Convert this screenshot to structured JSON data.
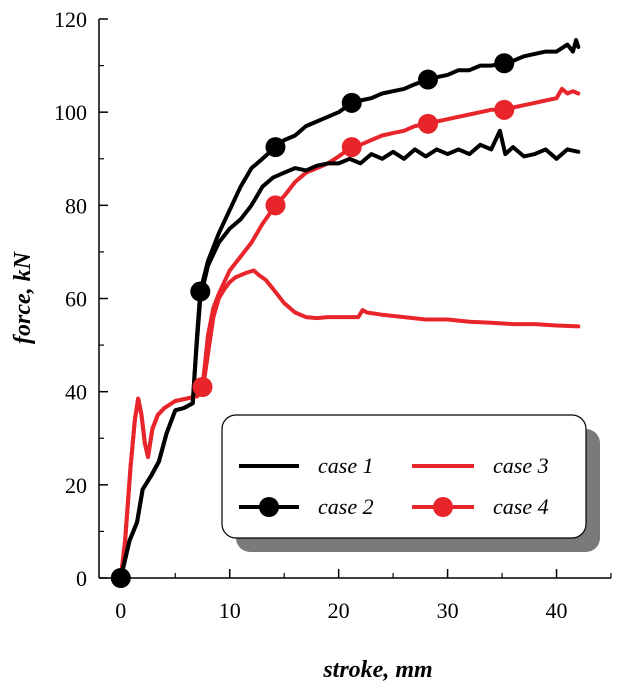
{
  "chart_data": {
    "type": "line",
    "title": "",
    "xlabel": "stroke, mm",
    "ylabel": "force, kN",
    "xlim": [
      -2,
      45
    ],
    "ylim": [
      0,
      120
    ],
    "x_ticks": [
      0,
      10,
      20,
      30,
      40
    ],
    "y_ticks": [
      0,
      20,
      40,
      60,
      80,
      100,
      120
    ],
    "grid": false,
    "legend_placement": "lower-right",
    "colors": {
      "black": "#000000",
      "red": "#e8252b"
    },
    "series": [
      {
        "name": "case 1",
        "color": "#000000",
        "marker": false,
        "points": [
          [
            0,
            0
          ],
          [
            0.8,
            8
          ],
          [
            1.5,
            12
          ],
          [
            2,
            19
          ],
          [
            2.8,
            22
          ],
          [
            3.5,
            25
          ],
          [
            4.2,
            31
          ],
          [
            5,
            36
          ],
          [
            5.8,
            36.5
          ],
          [
            6.2,
            37
          ],
          [
            6.6,
            37.5
          ],
          [
            6.9,
            48
          ],
          [
            7.3,
            60
          ],
          [
            8,
            67
          ],
          [
            9,
            72
          ],
          [
            10,
            75
          ],
          [
            11,
            77
          ],
          [
            12,
            80
          ],
          [
            13,
            84
          ],
          [
            14,
            86
          ],
          [
            15,
            87
          ],
          [
            16,
            88
          ],
          [
            17,
            87.5
          ],
          [
            18,
            88.5
          ],
          [
            19,
            89
          ],
          [
            20,
            89
          ],
          [
            21,
            90
          ],
          [
            22,
            89
          ],
          [
            23,
            91
          ],
          [
            24,
            90
          ],
          [
            25,
            91.5
          ],
          [
            26,
            90
          ],
          [
            27,
            92
          ],
          [
            28,
            90.5
          ],
          [
            29,
            92
          ],
          [
            30,
            91
          ],
          [
            31,
            92
          ],
          [
            32,
            91
          ],
          [
            33,
            93
          ],
          [
            34,
            92
          ],
          [
            34.8,
            96
          ],
          [
            35.3,
            91
          ],
          [
            36,
            92.5
          ],
          [
            37,
            90.5
          ],
          [
            38,
            91
          ],
          [
            39,
            92
          ],
          [
            40,
            90
          ],
          [
            41,
            92
          ],
          [
            42,
            91.5
          ]
        ]
      },
      {
        "name": "case 2",
        "color": "#000000",
        "marker": true,
        "markers_at": [
          [
            0,
            0
          ],
          [
            7.3,
            61.5
          ],
          [
            14.2,
            92.5
          ],
          [
            21.2,
            102
          ],
          [
            28.2,
            107
          ],
          [
            35.2,
            110.5
          ]
        ],
        "points": [
          [
            0,
            0
          ],
          [
            0.8,
            8
          ],
          [
            1.5,
            12
          ],
          [
            2,
            19
          ],
          [
            2.8,
            22
          ],
          [
            3.5,
            25
          ],
          [
            4.2,
            31
          ],
          [
            5,
            36
          ],
          [
            5.8,
            36.5
          ],
          [
            6.2,
            37
          ],
          [
            6.6,
            37.5
          ],
          [
            7,
            52
          ],
          [
            7.3,
            61.5
          ],
          [
            8,
            68
          ],
          [
            9,
            74
          ],
          [
            10,
            79
          ],
          [
            11,
            84
          ],
          [
            12,
            88
          ],
          [
            13,
            90
          ],
          [
            14.2,
            92.5
          ],
          [
            15,
            94
          ],
          [
            16,
            95
          ],
          [
            17,
            97
          ],
          [
            18,
            98
          ],
          [
            19,
            99
          ],
          [
            20,
            100
          ],
          [
            21.2,
            102
          ],
          [
            22,
            102.5
          ],
          [
            23,
            103
          ],
          [
            24,
            104
          ],
          [
            25,
            104.5
          ],
          [
            26,
            105
          ],
          [
            27,
            106
          ],
          [
            28.2,
            107
          ],
          [
            29,
            107.5
          ],
          [
            30,
            108
          ],
          [
            31,
            109
          ],
          [
            32,
            109
          ],
          [
            33,
            110
          ],
          [
            34,
            110
          ],
          [
            35.2,
            110.5
          ],
          [
            36,
            111
          ],
          [
            37,
            112
          ],
          [
            38,
            112.5
          ],
          [
            39,
            113
          ],
          [
            40,
            113
          ],
          [
            41,
            114.5
          ],
          [
            41.5,
            113
          ],
          [
            41.8,
            115.5
          ],
          [
            42,
            114
          ]
        ]
      },
      {
        "name": "case 3",
        "color": "#e8252b",
        "marker": false,
        "points": [
          [
            0,
            0
          ],
          [
            0.4,
            8
          ],
          [
            0.9,
            24
          ],
          [
            1.3,
            34
          ],
          [
            1.6,
            38.5
          ],
          [
            1.9,
            35
          ],
          [
            2.2,
            29
          ],
          [
            2.5,
            26
          ],
          [
            2.9,
            32
          ],
          [
            3.4,
            35
          ],
          [
            4,
            36.5
          ],
          [
            5,
            38
          ],
          [
            6,
            38.5
          ],
          [
            7,
            39
          ],
          [
            7.5,
            40
          ],
          [
            8,
            48
          ],
          [
            8.5,
            56
          ],
          [
            9,
            60
          ],
          [
            9.5,
            62
          ],
          [
            10,
            63.5
          ],
          [
            10.5,
            64.5
          ],
          [
            11,
            65
          ],
          [
            11.5,
            65.5
          ],
          [
            12.2,
            66
          ],
          [
            12.7,
            65
          ],
          [
            13.3,
            64
          ],
          [
            14,
            62
          ],
          [
            15,
            59
          ],
          [
            16,
            57
          ],
          [
            17,
            56
          ],
          [
            18,
            55.8
          ],
          [
            19,
            56
          ],
          [
            20,
            56
          ],
          [
            21,
            56
          ],
          [
            21.8,
            56
          ],
          [
            22.2,
            57.5
          ],
          [
            22.6,
            57
          ],
          [
            24,
            56.5
          ],
          [
            26,
            56
          ],
          [
            28,
            55.5
          ],
          [
            30,
            55.5
          ],
          [
            32,
            55
          ],
          [
            34,
            54.8
          ],
          [
            36,
            54.5
          ],
          [
            38,
            54.5
          ],
          [
            40,
            54.2
          ],
          [
            42,
            54
          ]
        ]
      },
      {
        "name": "case 4",
        "color": "#e8252b",
        "marker": true,
        "markers_at": [
          [
            7.5,
            41
          ],
          [
            14.2,
            80
          ],
          [
            21.2,
            92.5
          ],
          [
            28.2,
            97.5
          ],
          [
            35.2,
            100.5
          ]
        ],
        "points": [
          [
            0,
            0
          ],
          [
            0.4,
            8
          ],
          [
            0.9,
            24
          ],
          [
            1.3,
            34
          ],
          [
            1.6,
            38.5
          ],
          [
            1.9,
            35
          ],
          [
            2.2,
            29
          ],
          [
            2.5,
            26
          ],
          [
            2.9,
            32
          ],
          [
            3.4,
            35
          ],
          [
            4,
            36.5
          ],
          [
            5,
            38
          ],
          [
            6,
            38.5
          ],
          [
            7,
            39
          ],
          [
            7.5,
            41
          ],
          [
            8,
            52
          ],
          [
            8.5,
            58
          ],
          [
            9,
            61
          ],
          [
            10,
            66
          ],
          [
            11,
            69
          ],
          [
            12,
            72
          ],
          [
            13,
            76
          ],
          [
            14.2,
            80
          ],
          [
            15,
            82
          ],
          [
            16,
            85
          ],
          [
            17,
            87
          ],
          [
            18,
            88
          ],
          [
            19,
            89
          ],
          [
            20,
            90.5
          ],
          [
            21.2,
            92.5
          ],
          [
            22,
            93
          ],
          [
            23,
            94
          ],
          [
            24,
            95
          ],
          [
            25,
            95.5
          ],
          [
            26,
            96
          ],
          [
            27,
            97
          ],
          [
            28.2,
            97.5
          ],
          [
            29,
            98
          ],
          [
            30,
            98.5
          ],
          [
            31,
            99
          ],
          [
            32,
            99.5
          ],
          [
            33,
            100
          ],
          [
            34,
            100.5
          ],
          [
            35.2,
            100.5
          ],
          [
            36,
            101
          ],
          [
            37,
            101.5
          ],
          [
            38,
            102
          ],
          [
            39,
            102.5
          ],
          [
            40,
            103
          ],
          [
            40.5,
            105
          ],
          [
            41,
            104
          ],
          [
            41.5,
            104.5
          ],
          [
            42,
            104
          ]
        ]
      }
    ],
    "legend": [
      {
        "label": "case 1",
        "series": 0
      },
      {
        "label": "case 2",
        "series": 1
      },
      {
        "label": "case 3",
        "series": 2
      },
      {
        "label": "case 4",
        "series": 3
      }
    ]
  }
}
